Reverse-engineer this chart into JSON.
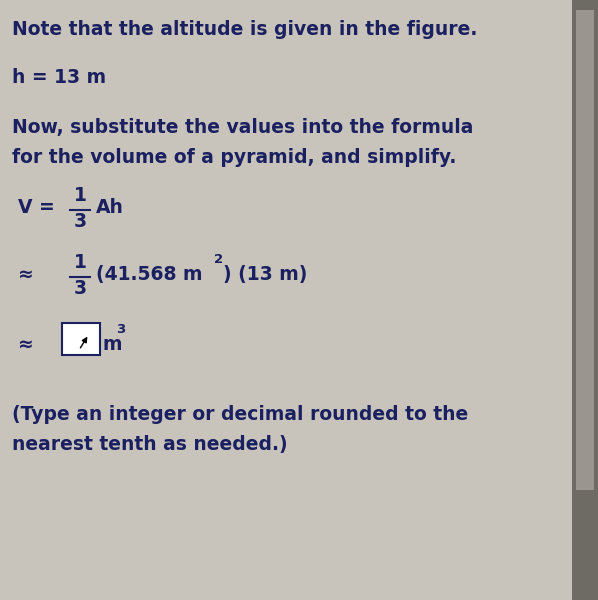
{
  "background_color": "#c8c4bc",
  "text_color": "#1a2060",
  "right_panel_color": "#8a8880",
  "title_line": "Note that the altitude is given in the figure.",
  "h_line": "h = 13 m",
  "subtitle_line1": "Now, substitute the values into the formula",
  "subtitle_line2": "for the volume of a pyramid, and simplify.",
  "footer_line1": "(Type an integer or decimal rounded to the",
  "footer_line2": "nearest tenth as needed.)",
  "title_fontsize": 13.5,
  "body_fontsize": 13.5,
  "math_fontsize": 13.5,
  "small_fontsize": 9.5
}
